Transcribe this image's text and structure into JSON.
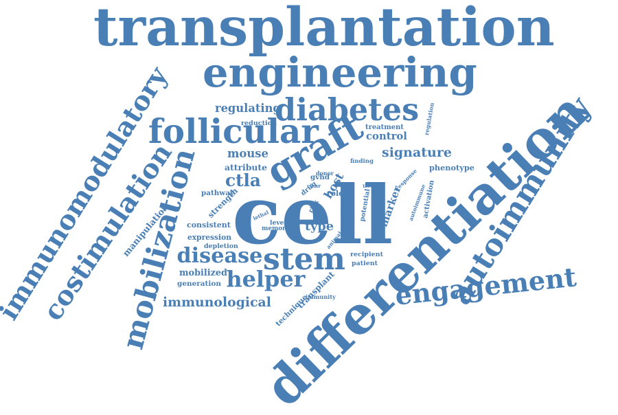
{
  "color": "#4a7fb5",
  "words": [
    "transplantation",
    "engineering",
    "differentiation",
    "cell",
    "immunomodulatory",
    "costimulation",
    "mobilization",
    "follicular",
    "graft",
    "diabetes",
    "autoimmunity",
    "engagement",
    "stem",
    "disease",
    "helper",
    "immunological",
    "ctla",
    "signature",
    "mouse",
    "regulating",
    "control",
    "host",
    "type",
    "mobilized",
    "consistent",
    "expression",
    "generation",
    "attribute",
    "strength",
    "manipulation",
    "marker",
    "autoimmune",
    "phenotype",
    "potential",
    "treatment",
    "reduction",
    "regulation",
    "response",
    "activation",
    "recipient",
    "patient",
    "transplant",
    "immunity",
    "technique",
    "pathway",
    "depletion",
    "memory",
    "level",
    "lethal",
    "role",
    "gvhd",
    "drug",
    "donor",
    "finding",
    "useful",
    "model",
    "risk",
    "clear",
    "animal"
  ]
}
